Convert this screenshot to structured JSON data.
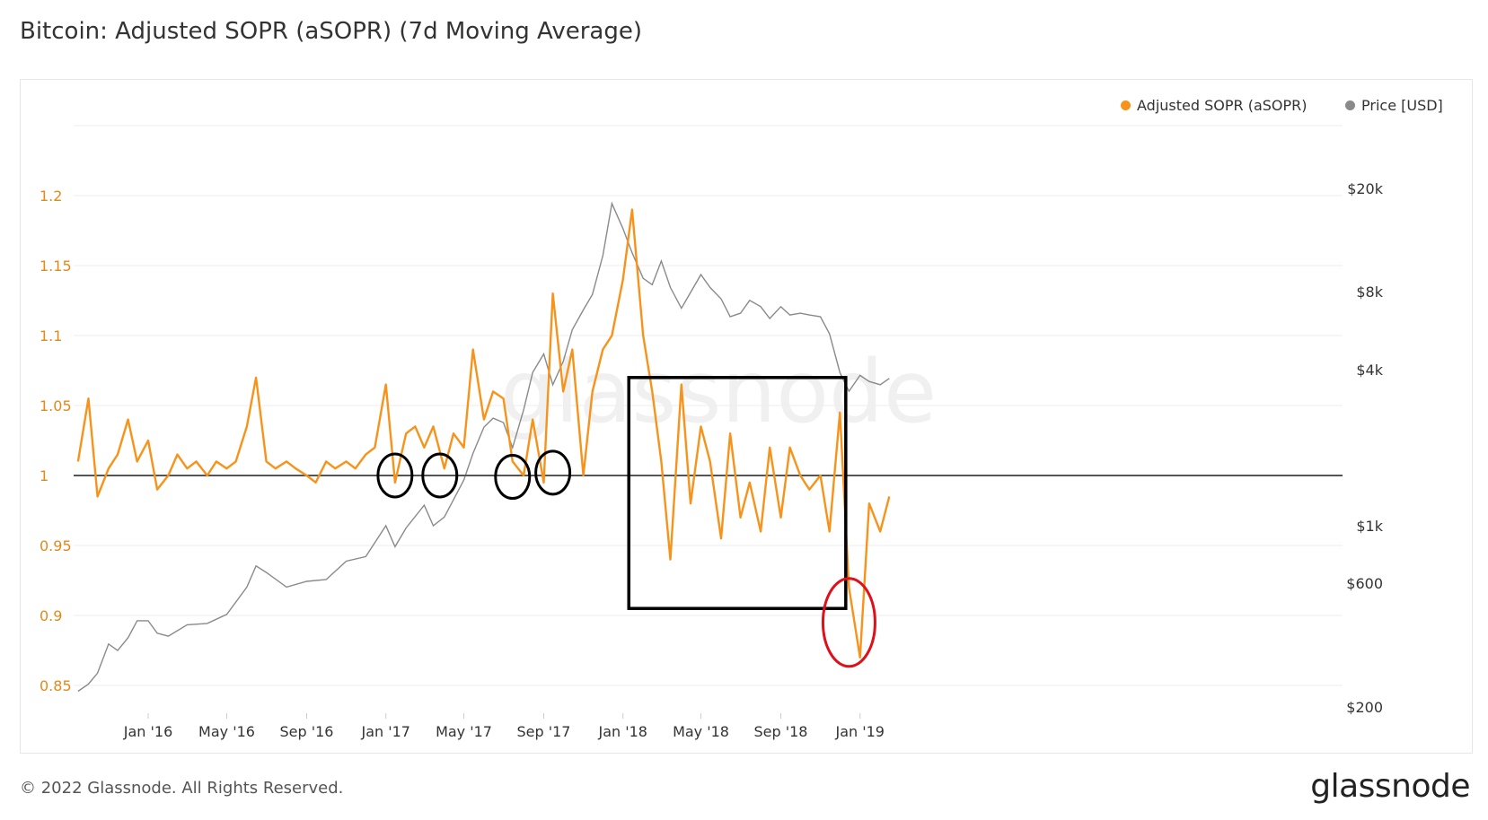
{
  "title": "Bitcoin: Adjusted SOPR (aSOPR) (7d Moving Average)",
  "footer": {
    "copyright": "© 2022 Glassnode. All Rights Reserved.",
    "brand": "glassnode"
  },
  "watermark": "glassnode",
  "colors": {
    "sopr": "#f7931a",
    "price": "#8a8a8a",
    "baseline": "#555555",
    "left_axis_text": "#e08a1a",
    "right_axis_text": "#333333",
    "annotation_black": "#000000",
    "annotation_red": "#e0101a"
  },
  "legend": [
    {
      "label": "Adjusted SOPR (aSOPR)",
      "color": "#f7931a"
    },
    {
      "label": "Price [USD]",
      "color": "#8a8a8a"
    }
  ],
  "chart_data": {
    "type": "line",
    "x_ticks": [
      "Jan '16",
      "May '16",
      "Sep '16",
      "Jan '17",
      "May '17",
      "Sep '17",
      "Jan '18",
      "May '18",
      "Sep '18",
      "Jan '19"
    ],
    "left_axis": {
      "ticks": [
        "1.2",
        "1.15",
        "1.1",
        "1.05",
        "1",
        "0.95",
        "0.9",
        "0.85"
      ],
      "ylim": [
        0.85,
        1.2
      ]
    },
    "right_axis": {
      "ticks": [
        "$20k",
        "$8k",
        "$4k",
        "$1k",
        "$600",
        "$200"
      ],
      "scale": "log",
      "ylim": [
        200,
        20000
      ]
    },
    "reference_line": 1,
    "series": [
      {
        "name": "Adjusted SOPR (aSOPR)",
        "axis": "left",
        "x": [
          "2015-09-15",
          "2015-10-01",
          "2015-10-15",
          "2015-11-01",
          "2015-11-15",
          "2015-12-01",
          "2015-12-15",
          "2016-01-01",
          "2016-01-15",
          "2016-02-01",
          "2016-02-15",
          "2016-03-01",
          "2016-03-15",
          "2016-04-01",
          "2016-04-15",
          "2016-05-01",
          "2016-05-15",
          "2016-06-01",
          "2016-06-15",
          "2016-07-01",
          "2016-07-15",
          "2016-08-01",
          "2016-08-15",
          "2016-09-01",
          "2016-09-15",
          "2016-10-01",
          "2016-10-15",
          "2016-11-01",
          "2016-11-15",
          "2016-12-01",
          "2016-12-15",
          "2017-01-01",
          "2017-01-15",
          "2017-02-01",
          "2017-02-15",
          "2017-03-01",
          "2017-03-15",
          "2017-04-01",
          "2017-04-15",
          "2017-05-01",
          "2017-05-15",
          "2017-06-01",
          "2017-06-15",
          "2017-07-01",
          "2017-07-15",
          "2017-08-01",
          "2017-08-15",
          "2017-09-01",
          "2017-09-15",
          "2017-10-01",
          "2017-10-15",
          "2017-11-01",
          "2017-11-15",
          "2017-12-01",
          "2017-12-15",
          "2018-01-01",
          "2018-01-15",
          "2018-02-01",
          "2018-02-15",
          "2018-03-01",
          "2018-03-15",
          "2018-04-01",
          "2018-04-15",
          "2018-05-01",
          "2018-05-15",
          "2018-06-01",
          "2018-06-15",
          "2018-07-01",
          "2018-07-15",
          "2018-08-01",
          "2018-08-15",
          "2018-09-01",
          "2018-09-15",
          "2018-10-01",
          "2018-10-15",
          "2018-11-01",
          "2018-11-15",
          "2018-12-01",
          "2018-12-15",
          "2019-01-01",
          "2019-01-15",
          "2019-02-01",
          "2019-02-15"
        ],
        "values": [
          1.01,
          1.055,
          0.985,
          1.005,
          1.015,
          1.04,
          1.01,
          1.025,
          0.99,
          1.0,
          1.015,
          1.005,
          1.01,
          1.0,
          1.01,
          1.005,
          1.01,
          1.035,
          1.07,
          1.01,
          1.005,
          1.01,
          1.005,
          1.0,
          0.995,
          1.01,
          1.005,
          1.01,
          1.005,
          1.015,
          1.02,
          1.065,
          0.995,
          1.03,
          1.035,
          1.02,
          1.035,
          1.005,
          1.03,
          1.02,
          1.09,
          1.04,
          1.06,
          1.055,
          1.01,
          1.0,
          1.04,
          0.995,
          1.13,
          1.06,
          1.09,
          1.0,
          1.06,
          1.09,
          1.1,
          1.14,
          1.19,
          1.1,
          1.06,
          1.01,
          0.94,
          1.065,
          0.98,
          1.035,
          1.01,
          0.955,
          1.03,
          0.97,
          0.995,
          0.96,
          1.02,
          0.97,
          1.02,
          1.0,
          0.99,
          1.0,
          0.96,
          1.045,
          0.92,
          0.87,
          0.98,
          0.96,
          0.985
        ]
      },
      {
        "name": "Price [USD]",
        "axis": "right",
        "x": [
          "2015-09-15",
          "2015-10-01",
          "2015-10-15",
          "2015-11-01",
          "2015-11-15",
          "2015-12-01",
          "2015-12-15",
          "2016-01-01",
          "2016-01-15",
          "2016-02-01",
          "2016-03-01",
          "2016-04-01",
          "2016-05-01",
          "2016-06-01",
          "2016-06-15",
          "2016-07-01",
          "2016-08-01",
          "2016-09-01",
          "2016-10-01",
          "2016-11-01",
          "2016-12-01",
          "2017-01-01",
          "2017-01-15",
          "2017-02-01",
          "2017-03-01",
          "2017-03-15",
          "2017-04-01",
          "2017-05-01",
          "2017-05-15",
          "2017-06-01",
          "2017-06-15",
          "2017-07-01",
          "2017-07-15",
          "2017-08-01",
          "2017-08-15",
          "2017-09-01",
          "2017-09-15",
          "2017-10-01",
          "2017-10-15",
          "2017-11-01",
          "2017-11-15",
          "2017-12-01",
          "2017-12-15",
          "2018-01-01",
          "2018-01-15",
          "2018-02-01",
          "2018-02-15",
          "2018-03-01",
          "2018-03-15",
          "2018-04-01",
          "2018-05-01",
          "2018-05-15",
          "2018-06-01",
          "2018-06-15",
          "2018-07-01",
          "2018-07-15",
          "2018-08-01",
          "2018-08-15",
          "2018-09-01",
          "2018-09-15",
          "2018-10-01",
          "2018-10-15",
          "2018-11-01",
          "2018-11-15",
          "2018-12-01",
          "2018-12-15",
          "2019-01-01",
          "2019-01-15",
          "2019-02-01",
          "2019-02-15"
        ],
        "values": [
          230,
          245,
          270,
          350,
          330,
          370,
          430,
          430,
          385,
          375,
          415,
          420,
          455,
          580,
          700,
          660,
          580,
          610,
          620,
          730,
          760,
          1000,
          830,
          980,
          1200,
          1000,
          1080,
          1500,
          1900,
          2400,
          2600,
          2500,
          2000,
          2800,
          3900,
          4600,
          3500,
          4300,
          5700,
          6800,
          7800,
          11000,
          17500,
          14000,
          11300,
          9000,
          8500,
          10500,
          8300,
          6900,
          9300,
          8300,
          7500,
          6400,
          6600,
          7400,
          7000,
          6300,
          7000,
          6500,
          6600,
          6500,
          6400,
          5500,
          3900,
          3300,
          3800,
          3600,
          3500,
          3700
        ]
      }
    ],
    "annotations": [
      {
        "shape": "ellipse",
        "color": "black",
        "x": "2017-01-15",
        "y": 1.0
      },
      {
        "shape": "ellipse",
        "color": "black",
        "x": "2017-03-25",
        "y": 1.0
      },
      {
        "shape": "ellipse",
        "color": "black",
        "x": "2017-07-15",
        "y": 0.999
      },
      {
        "shape": "ellipse",
        "color": "black",
        "x": "2017-09-15",
        "y": 1.002
      },
      {
        "shape": "rectangle",
        "color": "black",
        "x_from": "2018-01-10",
        "x_to": "2018-12-10",
        "y_from": 0.905,
        "y_to": 1.07
      },
      {
        "shape": "ellipse",
        "color": "red",
        "x": "2018-12-15",
        "y": 0.895
      }
    ]
  }
}
